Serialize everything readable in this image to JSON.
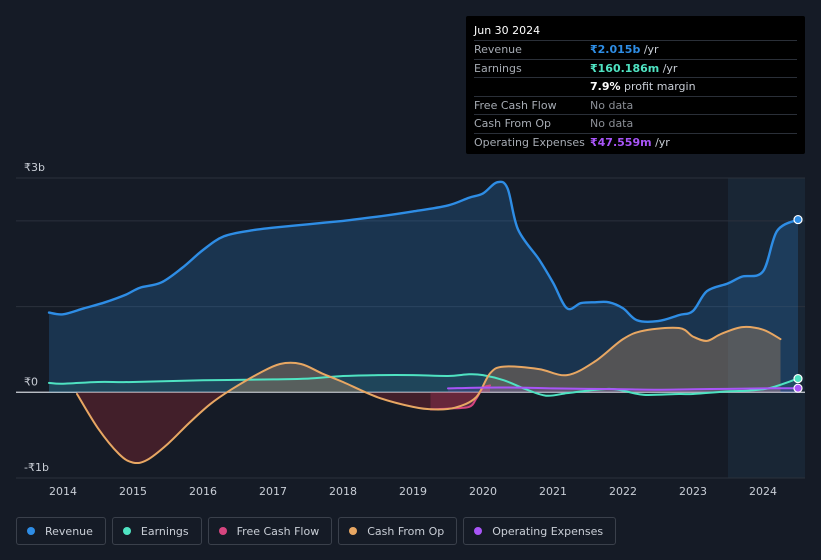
{
  "tooltip": {
    "date": "Jun 30 2024",
    "rows": [
      {
        "label": "Revenue",
        "value": "₹2.015b",
        "unit": " /yr",
        "color": "#2e8de5"
      },
      {
        "label": "Earnings",
        "value": "₹160.186m",
        "unit": " /yr",
        "color": "#4fe3c2"
      },
      {
        "label": "",
        "value": "7.9%",
        "unit": " profit margin",
        "color": "#ffffff"
      },
      {
        "label": "Free Cash Flow",
        "value": "No data",
        "unit": "",
        "color": ""
      },
      {
        "label": "Cash From Op",
        "value": "No data",
        "unit": "",
        "color": ""
      },
      {
        "label": "Operating Expenses",
        "value": "₹47.559m",
        "unit": " /yr",
        "color": "#a855f7"
      }
    ]
  },
  "legend": [
    {
      "label": "Revenue",
      "color": "#2e8de5"
    },
    {
      "label": "Earnings",
      "color": "#4fe3c2"
    },
    {
      "label": "Free Cash Flow",
      "color": "#d6457f"
    },
    {
      "label": "Cash From Op",
      "color": "#e8a763"
    },
    {
      "label": "Operating Expenses",
      "color": "#a855f7"
    }
  ],
  "chart_data": {
    "type": "area",
    "title": "",
    "ylim": [
      -1.0,
      2.5
    ],
    "y_tick_labels": [
      {
        "value": 2.5,
        "label": "₹3b"
      },
      {
        "value": 0,
        "label": "₹0"
      },
      {
        "value": -1.0,
        "label": "-₹1b"
      }
    ],
    "xlim": [
      2013.8,
      2024.6
    ],
    "x_ticks": [
      2014,
      2015,
      2016,
      2017,
      2018,
      2019,
      2020,
      2021,
      2022,
      2023,
      2024
    ],
    "highlight_from": 2023.5,
    "series": [
      {
        "name": "Revenue",
        "color": "#2e8de5",
        "points": [
          [
            2013.8,
            0.93
          ],
          [
            2014.0,
            0.91
          ],
          [
            2014.3,
            0.98
          ],
          [
            2014.6,
            1.05
          ],
          [
            2014.9,
            1.14
          ],
          [
            2015.1,
            1.22
          ],
          [
            2015.4,
            1.28
          ],
          [
            2015.7,
            1.45
          ],
          [
            2016.0,
            1.66
          ],
          [
            2016.3,
            1.82
          ],
          [
            2016.7,
            1.89
          ],
          [
            2017.0,
            1.92
          ],
          [
            2017.5,
            1.96
          ],
          [
            2018.0,
            2.0
          ],
          [
            2018.5,
            2.05
          ],
          [
            2019.0,
            2.11
          ],
          [
            2019.5,
            2.18
          ],
          [
            2019.8,
            2.27
          ],
          [
            2020.0,
            2.32
          ],
          [
            2020.2,
            2.45
          ],
          [
            2020.35,
            2.38
          ],
          [
            2020.5,
            1.9
          ],
          [
            2020.8,
            1.55
          ],
          [
            2021.0,
            1.28
          ],
          [
            2021.2,
            0.98
          ],
          [
            2021.4,
            1.04
          ],
          [
            2021.6,
            1.05
          ],
          [
            2021.8,
            1.05
          ],
          [
            2022.0,
            0.98
          ],
          [
            2022.2,
            0.84
          ],
          [
            2022.5,
            0.83
          ],
          [
            2022.8,
            0.9
          ],
          [
            2023.0,
            0.95
          ],
          [
            2023.2,
            1.18
          ],
          [
            2023.5,
            1.27
          ],
          [
            2023.7,
            1.35
          ],
          [
            2024.0,
            1.41
          ],
          [
            2024.2,
            1.88
          ],
          [
            2024.5,
            2.015
          ]
        ]
      },
      {
        "name": "Earnings",
        "color": "#4fe3c2",
        "points": [
          [
            2013.8,
            0.11
          ],
          [
            2014.0,
            0.1
          ],
          [
            2014.5,
            0.12
          ],
          [
            2015.0,
            0.12
          ],
          [
            2016.0,
            0.14
          ],
          [
            2017.0,
            0.15
          ],
          [
            2017.5,
            0.16
          ],
          [
            2018.0,
            0.19
          ],
          [
            2018.5,
            0.2
          ],
          [
            2019.0,
            0.2
          ],
          [
            2019.5,
            0.19
          ],
          [
            2019.8,
            0.21
          ],
          [
            2020.0,
            0.2
          ],
          [
            2020.3,
            0.14
          ],
          [
            2020.6,
            0.04
          ],
          [
            2020.9,
            -0.04
          ],
          [
            2021.2,
            -0.01
          ],
          [
            2021.5,
            0.02
          ],
          [
            2021.8,
            0.04
          ],
          [
            2022.0,
            0.02
          ],
          [
            2022.3,
            -0.03
          ],
          [
            2022.8,
            -0.02
          ],
          [
            2023.0,
            -0.02
          ],
          [
            2023.5,
            0.01
          ],
          [
            2023.8,
            0.02
          ],
          [
            2024.1,
            0.05
          ],
          [
            2024.5,
            0.16
          ]
        ]
      },
      {
        "name": "Free Cash Flow",
        "color": "#d6457f",
        "points": [
          [
            2019.25,
            -0.2
          ],
          [
            2019.5,
            -0.19
          ],
          [
            2019.8,
            -0.17
          ],
          [
            2019.9,
            -0.08
          ],
          [
            2020.0,
            0.05
          ],
          [
            2020.1,
            0.08
          ]
        ]
      },
      {
        "name": "Cash From Op",
        "color": "#e8a763",
        "points": [
          [
            2014.2,
            -0.02
          ],
          [
            2014.5,
            -0.42
          ],
          [
            2014.8,
            -0.72
          ],
          [
            2015.0,
            -0.82
          ],
          [
            2015.2,
            -0.79
          ],
          [
            2015.5,
            -0.6
          ],
          [
            2015.8,
            -0.36
          ],
          [
            2016.1,
            -0.14
          ],
          [
            2016.4,
            0.03
          ],
          [
            2016.8,
            0.22
          ],
          [
            2017.1,
            0.33
          ],
          [
            2017.4,
            0.33
          ],
          [
            2017.7,
            0.22
          ],
          [
            2018.0,
            0.12
          ],
          [
            2018.5,
            -0.06
          ],
          [
            2019.0,
            -0.17
          ],
          [
            2019.3,
            -0.2
          ],
          [
            2019.6,
            -0.18
          ],
          [
            2019.9,
            -0.06
          ],
          [
            2020.1,
            0.22
          ],
          [
            2020.3,
            0.3
          ],
          [
            2020.8,
            0.27
          ],
          [
            2021.2,
            0.2
          ],
          [
            2021.6,
            0.36
          ],
          [
            2022.0,
            0.62
          ],
          [
            2022.3,
            0.72
          ],
          [
            2022.8,
            0.75
          ],
          [
            2023.0,
            0.65
          ],
          [
            2023.2,
            0.6
          ],
          [
            2023.4,
            0.68
          ],
          [
            2023.7,
            0.76
          ],
          [
            2024.0,
            0.73
          ],
          [
            2024.25,
            0.62
          ]
        ]
      },
      {
        "name": "Operating Expenses",
        "color": "#a855f7",
        "points": [
          [
            2019.5,
            0.045
          ],
          [
            2020.0,
            0.055
          ],
          [
            2020.5,
            0.055
          ],
          [
            2021.0,
            0.045
          ],
          [
            2021.5,
            0.04
          ],
          [
            2022.0,
            0.035
          ],
          [
            2022.5,
            0.03
          ],
          [
            2023.0,
            0.035
          ],
          [
            2023.5,
            0.04
          ],
          [
            2024.0,
            0.045
          ],
          [
            2024.5,
            0.0476
          ]
        ]
      }
    ]
  }
}
